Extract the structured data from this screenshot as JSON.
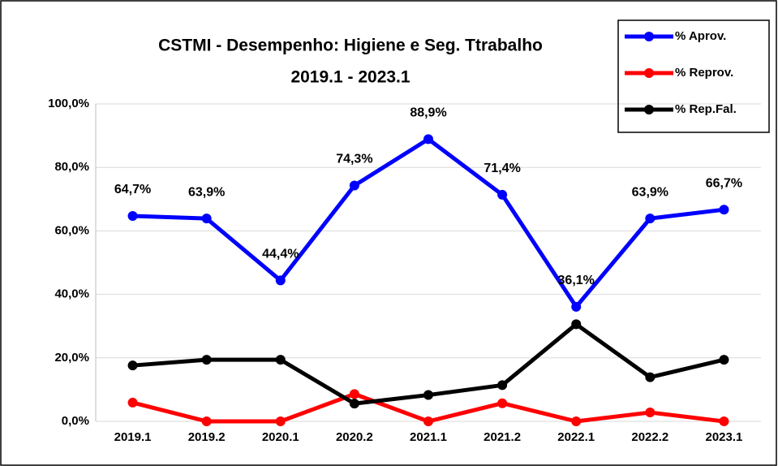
{
  "chart_data": {
    "type": "line",
    "title": "CSTMI - Desempenho: Higiene e Seg. Ttrabalho",
    "subtitle": "2019.1 - 2023.1",
    "categories": [
      "2019.1",
      "2019.2",
      "2020.1",
      "2020.2",
      "2021.1",
      "2021.2",
      "2022.1",
      "2022.2",
      "2023.1"
    ],
    "series": [
      {
        "name": "% Aprov.",
        "color": "#0000ff",
        "values": [
          64.7,
          63.9,
          44.4,
          74.3,
          88.9,
          71.4,
          36.1,
          63.9,
          66.7
        ],
        "value_labels": [
          "64,7%",
          "63,9%",
          "44,4%",
          "74,3%",
          "88,9%",
          "71,4%",
          "36,1%",
          "63,9%",
          "66,7%"
        ]
      },
      {
        "name": "% Reprov.",
        "color": "#ff0000",
        "values": [
          5.9,
          0,
          0,
          8.6,
          0,
          5.7,
          0,
          2.8,
          0
        ]
      },
      {
        "name": "% Rep.Fal.",
        "color": "#000000",
        "values": [
          17.6,
          19.4,
          19.4,
          5.6,
          8.3,
          11.4,
          30.6,
          13.9,
          19.4
        ]
      }
    ],
    "ylim": [
      0,
      100
    ],
    "yticks": [
      {
        "value": 0,
        "label": "0,0%"
      },
      {
        "value": 20,
        "label": "20,0%"
      },
      {
        "value": 40,
        "label": "40,0%"
      },
      {
        "value": 60,
        "label": "60,0%"
      },
      {
        "value": 80,
        "label": "80,0%"
      },
      {
        "value": 100,
        "label": "100,0%"
      }
    ],
    "grid": true,
    "legend": "top-right"
  }
}
